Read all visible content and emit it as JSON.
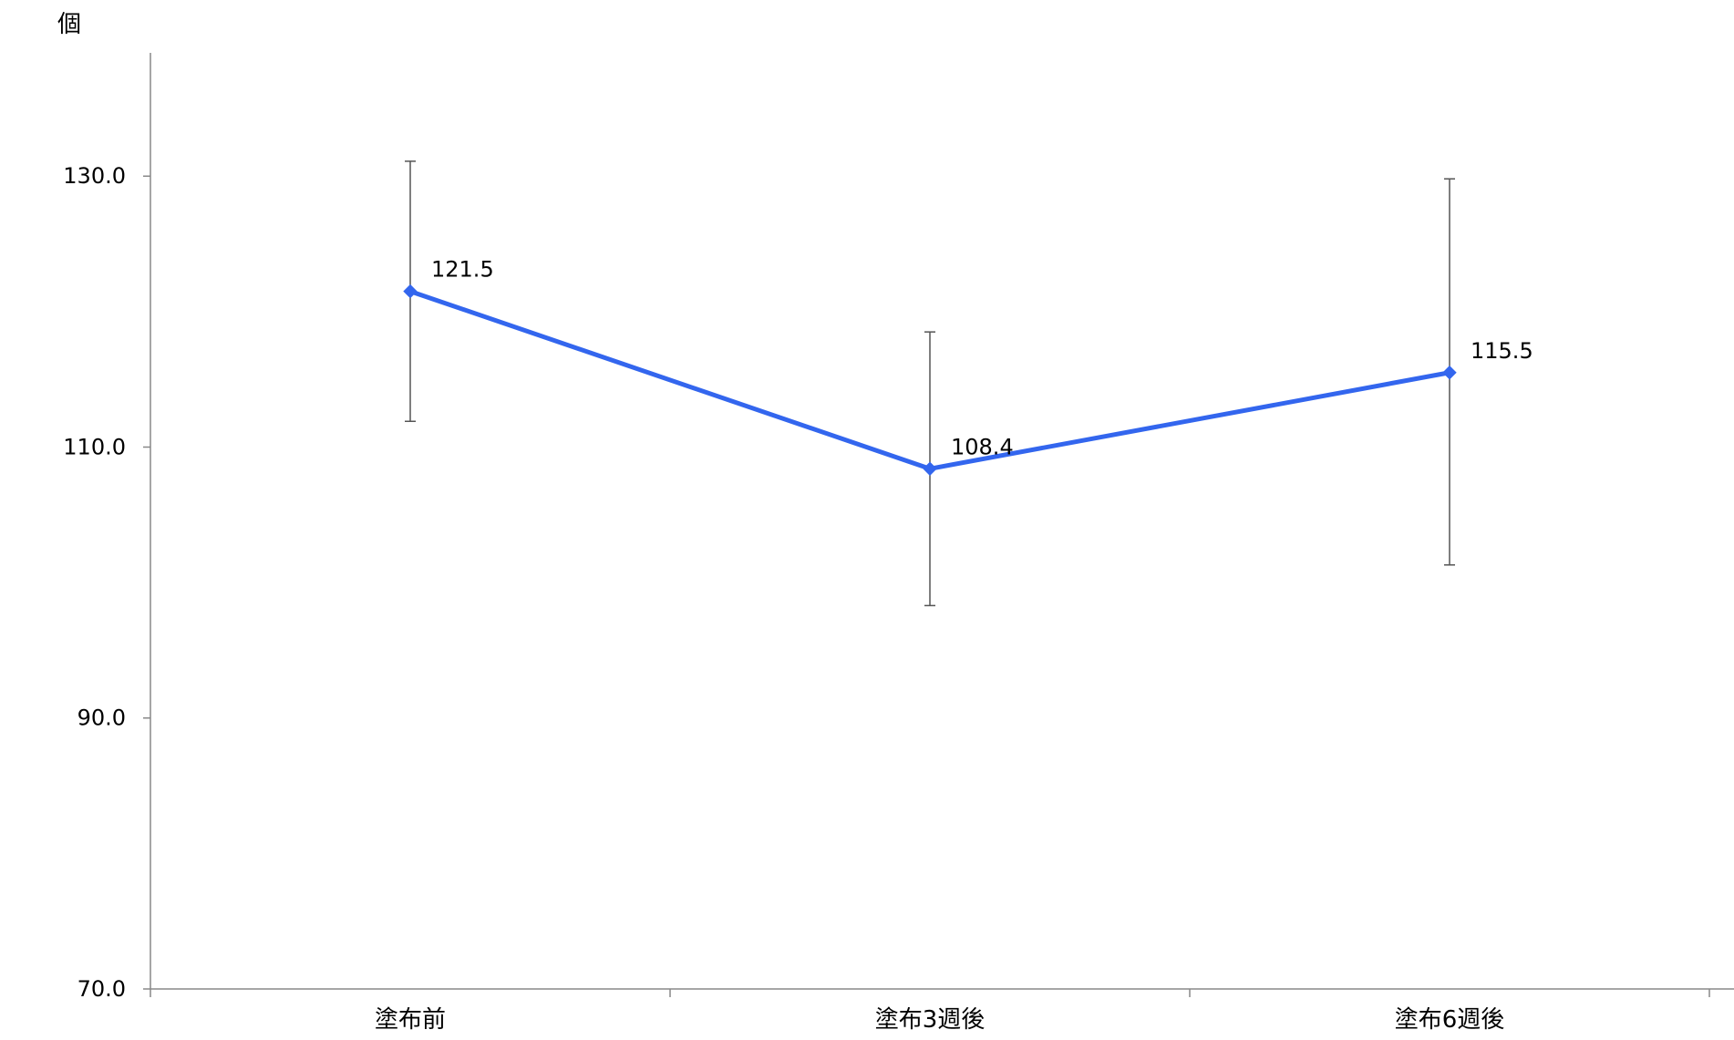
{
  "chart_data": {
    "type": "line",
    "title": "",
    "ylabel": "個",
    "xlabel": "",
    "categories": [
      "塗布前",
      "塗布3週後",
      "塗布6週後"
    ],
    "ylim": [
      70,
      139.1
    ],
    "yticks": [
      70,
      90,
      110,
      130
    ],
    "ytick_labels": [
      "70.0",
      "90.0",
      "110.0",
      "130.0"
    ],
    "grid": false,
    "legend": "none",
    "series": [
      {
        "values": [
          121.5,
          108.4,
          115.5
        ],
        "value_labels": [
          "121.5",
          "108.4",
          "115.5"
        ],
        "error_upper": [
          131.1,
          118.5,
          129.8
        ],
        "error_lower": [
          111.9,
          98.3,
          101.3
        ],
        "color": "#3366ee",
        "marker": "diamond"
      }
    ],
    "axis_color": "#888888",
    "errorbar_color": "#555555"
  }
}
